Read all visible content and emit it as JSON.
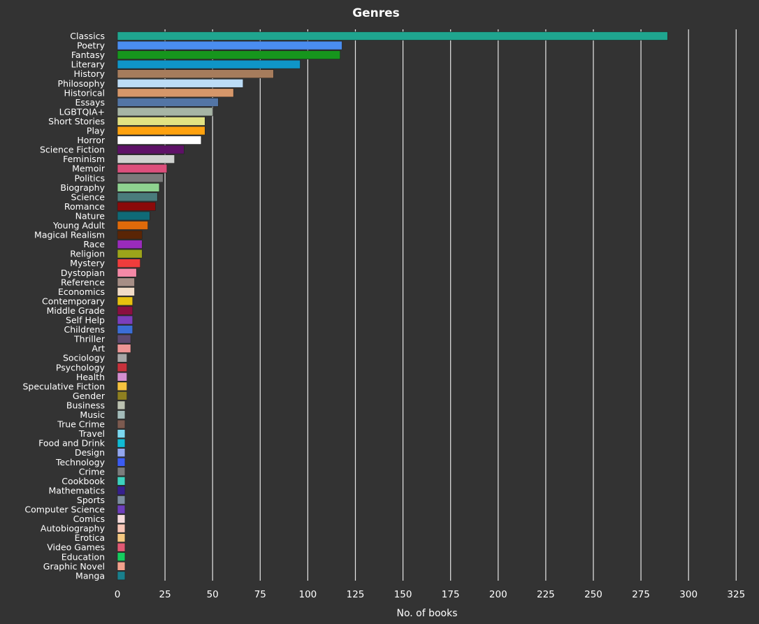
{
  "chart_data": {
    "type": "bar",
    "orientation": "horizontal",
    "title": "Genres",
    "xlabel": "No. of books",
    "ylabel": "",
    "xlim": [
      0,
      330
    ],
    "xticks": [
      0,
      25,
      50,
      75,
      100,
      125,
      150,
      175,
      200,
      225,
      250,
      275,
      300,
      325
    ],
    "grid": true,
    "categories": [
      "Classics",
      "Poetry",
      "Fantasy",
      "Literary",
      "History",
      "Philosophy",
      "Historical",
      "Essays",
      "LGBTQIA+",
      "Short Stories",
      "Play",
      "Horror",
      "Science Fiction",
      "Feminism",
      "Memoir",
      "Politics",
      "Biography",
      "Science",
      "Romance",
      "Nature",
      "Young Adult",
      "Magical Realism",
      "Race",
      "Religion",
      "Mystery",
      "Dystopian",
      "Reference",
      "Economics",
      "Contemporary",
      "Middle Grade",
      "Self Help",
      "Childrens",
      "Thriller",
      "Art",
      "Sociology",
      "Psychology",
      "Health",
      "Speculative Fiction",
      "Gender",
      "Business",
      "Music",
      "True Crime",
      "Travel",
      "Food and Drink",
      "Design",
      "Technology",
      "Crime",
      "Cookbook",
      "Mathematics",
      "Sports",
      "Computer Science",
      "Comics",
      "Autobiography",
      "Erotica",
      "Video Games",
      "Education",
      "Graphic Novel",
      "Manga"
    ],
    "values": [
      289,
      118,
      117,
      96,
      82,
      66,
      61,
      53,
      50,
      46,
      46,
      44,
      35,
      30,
      26,
      24,
      22,
      21,
      20,
      17,
      16,
      13,
      13,
      13,
      12,
      10,
      9,
      9,
      8,
      8,
      8,
      8,
      7,
      7,
      5,
      5,
      5,
      5,
      5,
      4,
      4,
      4,
      4,
      4,
      4,
      4,
      4,
      4,
      4,
      4,
      4,
      4,
      4,
      4,
      4,
      4,
      4,
      4
    ],
    "colors": [
      "#1fa58f",
      "#4a8df0",
      "#16961d",
      "#0f95c7",
      "#a67c5c",
      "#bcdcf6",
      "#d6976a",
      "#5375a5",
      "#a7b5a5",
      "#e2e283",
      "#ffa20f",
      "#ffffff",
      "#5e1167",
      "#d0d2d0",
      "#dc4f7c",
      "#7a7a7a",
      "#8ed28f",
      "#4a7c7c",
      "#8b0a0a",
      "#0f6a77",
      "#df6a0a",
      "#5a2505",
      "#9a2bbb",
      "#9ca41a",
      "#ef3c3c",
      "#f489a7",
      "#a68e86",
      "#f1dcc8",
      "#e7c10f",
      "#8a0f40",
      "#7c3fbc",
      "#3b6ed6",
      "#5e4a6f",
      "#ee9595",
      "#a7a7a7",
      "#c8323c",
      "#d58fd0",
      "#f6c23f",
      "#8e8020",
      "#bcc2b1",
      "#a4bcba",
      "#7c5a4f",
      "#7cd8f0",
      "#10bcd5",
      "#93a7ef",
      "#3b5cf4",
      "#7c7c7c",
      "#3dd2be",
      "#37208e",
      "#7c8ea0",
      "#6e3fbd",
      "#f6dcdc",
      "#f8c6b7",
      "#f5c880",
      "#e25a74",
      "#16cc5f",
      "#f2a18c",
      "#197f8c"
    ]
  }
}
